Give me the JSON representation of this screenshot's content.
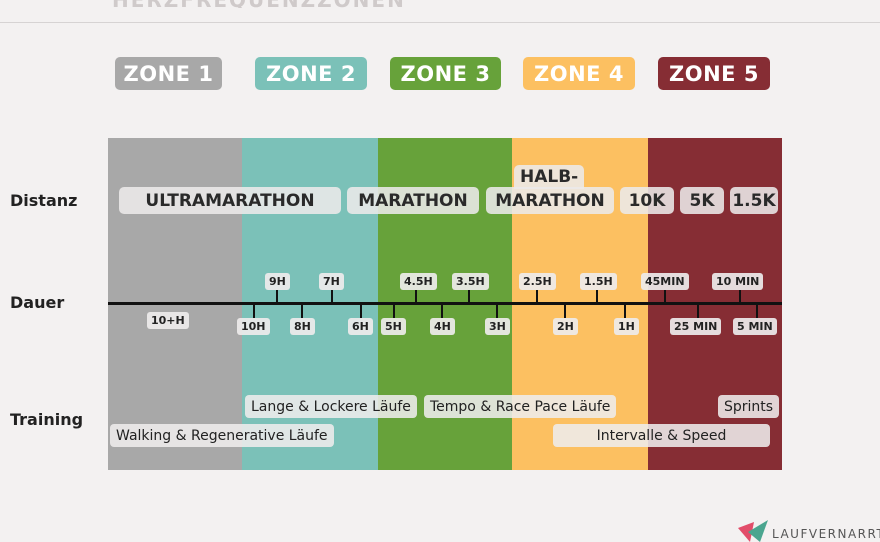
{
  "header": {
    "title": "HERZFREQUENZZONEN"
  },
  "zones": [
    {
      "label": "ZONE 1",
      "color": "#a8a8a8",
      "label_color": "#ffffff"
    },
    {
      "label": "ZONE 2",
      "color": "#7bc1b8",
      "label_color": "#ffffff"
    },
    {
      "label": "ZONE 3",
      "color": "#67a23a",
      "label_color": "#ffffff"
    },
    {
      "label": "ZONE 4",
      "color": "#fcc061",
      "label_color": "#ffffff"
    },
    {
      "label": "ZONE 5",
      "color": "#862d34",
      "label_color": "#ffffff"
    }
  ],
  "row_labels": {
    "distance": "Distanz",
    "duration": "Dauer",
    "training": "Training"
  },
  "distances": {
    "ultramarathon": "ULTRAMARATHON",
    "marathon": "MARATHON",
    "half_top": "HALB-",
    "half_bottom": "MARATHON",
    "d10k": "10K",
    "d5k": "5K",
    "d15k": "1.5K"
  },
  "durations_above": [
    "9H",
    "7H",
    "4.5H",
    "3.5H",
    "2.5H",
    "1.5H",
    "45MIN",
    "10 MIN"
  ],
  "durations_below": [
    "10+H",
    "10H",
    "8H",
    "6H",
    "5H",
    "4H",
    "3H",
    "2H",
    "1H",
    "25 MIN",
    "5 MIN"
  ],
  "training": {
    "walking": "Walking & Regenerative Läufe",
    "long_easy": "Lange & Lockere Läufe",
    "tempo": "Tempo & Race Pace Läufe",
    "intervals": "Intervalle & Speed",
    "sprints": "Sprints"
  },
  "brand": {
    "name": "LAUFVERNARRT",
    "logo_colors": [
      "#e24d6a",
      "#4aa58f"
    ]
  }
}
